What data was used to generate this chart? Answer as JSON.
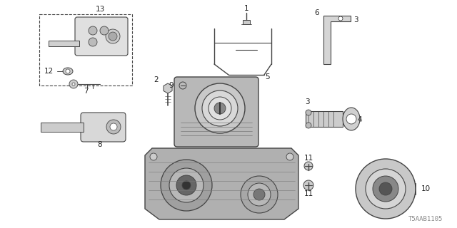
{
  "bg_color": "#ffffff",
  "diagram_code": "T5AAB1105",
  "line_color": "#444444",
  "label_color": "#222222",
  "label_fs": 7.5,
  "diagram_code_fs": 6.5
}
